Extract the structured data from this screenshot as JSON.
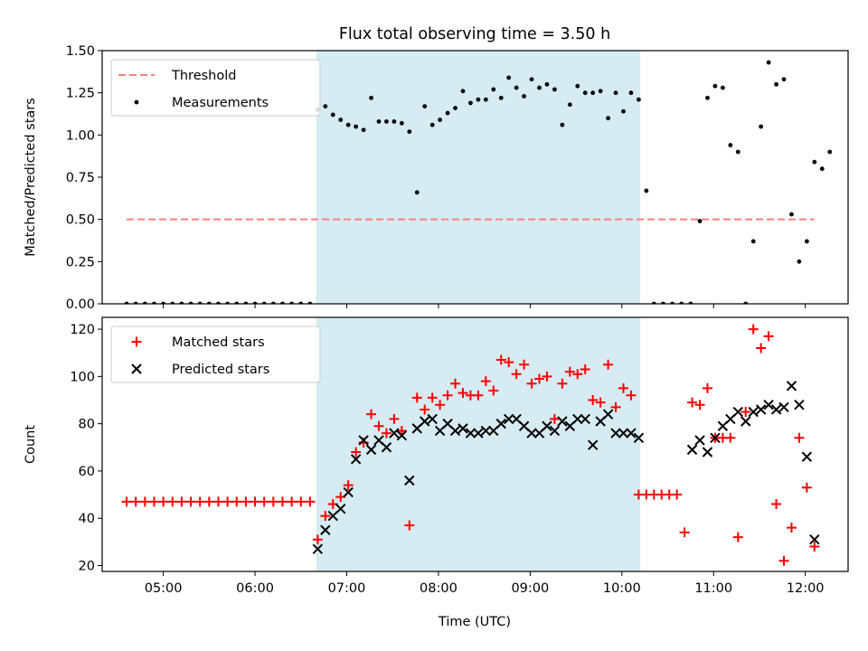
{
  "title": "Flux total observing time = 3.50 h",
  "xlabel": "Time (UTC)",
  "x_tick_labels": [
    "05:00",
    "06:00",
    "07:00",
    "08:00",
    "09:00",
    "10:00",
    "11:00",
    "12:00"
  ],
  "colors": {
    "threshold": "#ff7f7f",
    "measurement": "#000000",
    "matched": "#ff0000",
    "predicted": "#000000",
    "highlight": "#add8e6"
  },
  "chart_data": [
    {
      "type": "scatter",
      "ylabel": "Matched/Predicted stars",
      "xlim": [
        "04:20",
        "12:28"
      ],
      "ylim": [
        0,
        1.5
      ],
      "y_ticks": [
        "0.00",
        "0.25",
        "0.50",
        "0.75",
        "1.00",
        "1.25",
        "1.50"
      ],
      "highlight_span": [
        "06:40",
        "10:12"
      ],
      "grid": false,
      "legend_position": "top-left",
      "series": [
        {
          "name": "Threshold",
          "style": "dashed-line",
          "points": [
            [
              "04:36",
              0.5
            ],
            [
              "12:06",
              0.5
            ]
          ]
        },
        {
          "name": "Measurements",
          "style": "dot",
          "points": [
            [
              "04:36",
              0.0
            ],
            [
              "04:42",
              0.0
            ],
            [
              "04:48",
              0.0
            ],
            [
              "04:54",
              0.0
            ],
            [
              "05:00",
              0.0
            ],
            [
              "05:06",
              0.0
            ],
            [
              "05:12",
              0.0
            ],
            [
              "05:18",
              0.0
            ],
            [
              "05:24",
              0.0
            ],
            [
              "05:30",
              0.0
            ],
            [
              "05:36",
              0.0
            ],
            [
              "05:42",
              0.0
            ],
            [
              "05:48",
              0.0
            ],
            [
              "05:54",
              0.0
            ],
            [
              "06:00",
              0.0
            ],
            [
              "06:06",
              0.0
            ],
            [
              "06:12",
              0.0
            ],
            [
              "06:18",
              0.0
            ],
            [
              "06:24",
              0.0
            ],
            [
              "06:30",
              0.0
            ],
            [
              "06:36",
              0.0
            ],
            [
              "06:41",
              1.15
            ],
            [
              "06:46",
              1.17
            ],
            [
              "06:51",
              1.12
            ],
            [
              "06:56",
              1.09
            ],
            [
              "07:01",
              1.06
            ],
            [
              "07:06",
              1.05
            ],
            [
              "07:11",
              1.03
            ],
            [
              "07:16",
              1.22
            ],
            [
              "07:21",
              1.08
            ],
            [
              "07:26",
              1.08
            ],
            [
              "07:31",
              1.08
            ],
            [
              "07:36",
              1.07
            ],
            [
              "07:41",
              1.02
            ],
            [
              "07:46",
              0.66
            ],
            [
              "07:51",
              1.17
            ],
            [
              "07:56",
              1.06
            ],
            [
              "08:01",
              1.09
            ],
            [
              "08:06",
              1.13
            ],
            [
              "08:11",
              1.16
            ],
            [
              "08:16",
              1.26
            ],
            [
              "08:21",
              1.19
            ],
            [
              "08:26",
              1.21
            ],
            [
              "08:31",
              1.21
            ],
            [
              "08:36",
              1.27
            ],
            [
              "08:41",
              1.22
            ],
            [
              "08:46",
              1.34
            ],
            [
              "08:51",
              1.28
            ],
            [
              "08:56",
              1.23
            ],
            [
              "09:01",
              1.33
            ],
            [
              "09:06",
              1.28
            ],
            [
              "09:11",
              1.3
            ],
            [
              "09:16",
              1.27
            ],
            [
              "09:21",
              1.06
            ],
            [
              "09:26",
              1.18
            ],
            [
              "09:31",
              1.29
            ],
            [
              "09:36",
              1.25
            ],
            [
              "09:41",
              1.25
            ],
            [
              "09:46",
              1.26
            ],
            [
              "09:51",
              1.1
            ],
            [
              "09:56",
              1.25
            ],
            [
              "10:01",
              1.14
            ],
            [
              "10:06",
              1.25
            ],
            [
              "10:11",
              1.21
            ],
            [
              "10:16",
              0.67
            ],
            [
              "10:21",
              0.0
            ],
            [
              "10:27",
              0.0
            ],
            [
              "10:33",
              0.0
            ],
            [
              "10:39",
              0.0
            ],
            [
              "10:45",
              0.0
            ],
            [
              "10:51",
              0.49
            ],
            [
              "10:56",
              1.22
            ],
            [
              "11:01",
              1.29
            ],
            [
              "11:06",
              1.28
            ],
            [
              "11:11",
              0.94
            ],
            [
              "11:16",
              0.9
            ],
            [
              "11:21",
              0.0
            ],
            [
              "11:26",
              0.37
            ],
            [
              "11:31",
              1.05
            ],
            [
              "11:36",
              1.43
            ],
            [
              "11:41",
              1.3
            ],
            [
              "11:46",
              1.33
            ],
            [
              "11:51",
              0.53
            ],
            [
              "11:56",
              0.25
            ],
            [
              "12:01",
              0.37
            ],
            [
              "12:06",
              0.84
            ],
            [
              "12:11",
              0.8
            ],
            [
              "12:16",
              0.9
            ]
          ]
        }
      ]
    },
    {
      "type": "scatter",
      "ylabel": "Count",
      "xlim": [
        "04:20",
        "12:28"
      ],
      "ylim": [
        17.5,
        125
      ],
      "y_ticks": [
        "20",
        "40",
        "60",
        "80",
        "100",
        "120"
      ],
      "highlight_span": [
        "06:40",
        "10:12"
      ],
      "grid": false,
      "legend_position": "top-left",
      "series": [
        {
          "name": "Matched stars",
          "style": "plus",
          "points": [
            [
              "04:36",
              47
            ],
            [
              "04:42",
              47
            ],
            [
              "04:48",
              47
            ],
            [
              "04:54",
              47
            ],
            [
              "05:00",
              47
            ],
            [
              "05:06",
              47
            ],
            [
              "05:12",
              47
            ],
            [
              "05:18",
              47
            ],
            [
              "05:24",
              47
            ],
            [
              "05:30",
              47
            ],
            [
              "05:36",
              47
            ],
            [
              "05:42",
              47
            ],
            [
              "05:48",
              47
            ],
            [
              "05:54",
              47
            ],
            [
              "06:00",
              47
            ],
            [
              "06:06",
              47
            ],
            [
              "06:12",
              47
            ],
            [
              "06:18",
              47
            ],
            [
              "06:24",
              47
            ],
            [
              "06:30",
              47
            ],
            [
              "06:36",
              47
            ],
            [
              "06:41",
              31
            ],
            [
              "06:46",
              41
            ],
            [
              "06:51",
              46
            ],
            [
              "06:56",
              49
            ],
            [
              "07:01",
              54
            ],
            [
              "07:06",
              68
            ],
            [
              "07:11",
              72
            ],
            [
              "07:16",
              84
            ],
            [
              "07:21",
              79
            ],
            [
              "07:26",
              76
            ],
            [
              "07:31",
              82
            ],
            [
              "07:36",
              77
            ],
            [
              "07:41",
              37
            ],
            [
              "07:46",
              91
            ],
            [
              "07:51",
              86
            ],
            [
              "07:56",
              91
            ],
            [
              "08:01",
              88
            ],
            [
              "08:06",
              92
            ],
            [
              "08:11",
              97
            ],
            [
              "08:16",
              93
            ],
            [
              "08:21",
              92
            ],
            [
              "08:26",
              92
            ],
            [
              "08:31",
              98
            ],
            [
              "08:36",
              94
            ],
            [
              "08:41",
              107
            ],
            [
              "08:46",
              106
            ],
            [
              "08:51",
              101
            ],
            [
              "08:56",
              105
            ],
            [
              "09:01",
              97
            ],
            [
              "09:06",
              99
            ],
            [
              "09:11",
              100
            ],
            [
              "09:16",
              82
            ],
            [
              "09:21",
              97
            ],
            [
              "09:26",
              102
            ],
            [
              "09:31",
              101
            ],
            [
              "09:36",
              103
            ],
            [
              "09:41",
              90
            ],
            [
              "09:46",
              89
            ],
            [
              "09:51",
              105
            ],
            [
              "09:56",
              87
            ],
            [
              "10:01",
              95
            ],
            [
              "10:06",
              92
            ],
            [
              "10:11",
              50
            ],
            [
              "10:16",
              50
            ],
            [
              "10:21",
              50
            ],
            [
              "10:26",
              50
            ],
            [
              "10:31",
              50
            ],
            [
              "10:36",
              50
            ],
            [
              "10:41",
              34
            ],
            [
              "10:46",
              89
            ],
            [
              "10:51",
              88
            ],
            [
              "10:56",
              95
            ],
            [
              "11:01",
              74
            ],
            [
              "11:06",
              74
            ],
            [
              "11:11",
              74
            ],
            [
              "11:16",
              32
            ],
            [
              "11:21",
              85
            ],
            [
              "11:26",
              120
            ],
            [
              "11:31",
              112
            ],
            [
              "11:36",
              117
            ],
            [
              "11:41",
              46
            ],
            [
              "11:46",
              22
            ],
            [
              "11:51",
              36
            ],
            [
              "11:56",
              74
            ],
            [
              "12:01",
              53
            ],
            [
              "12:06",
              28
            ]
          ]
        },
        {
          "name": "Predicted stars",
          "style": "cross",
          "points": [
            [
              "06:41",
              27
            ],
            [
              "06:46",
              35
            ],
            [
              "06:51",
              41
            ],
            [
              "06:56",
              44
            ],
            [
              "07:01",
              51
            ],
            [
              "07:06",
              65
            ],
            [
              "07:11",
              73
            ],
            [
              "07:16",
              69
            ],
            [
              "07:21",
              73
            ],
            [
              "07:26",
              70
            ],
            [
              "07:31",
              76
            ],
            [
              "07:36",
              75
            ],
            [
              "07:41",
              56
            ],
            [
              "07:46",
              78
            ],
            [
              "07:51",
              81
            ],
            [
              "07:56",
              82
            ],
            [
              "08:01",
              77
            ],
            [
              "08:06",
              80
            ],
            [
              "08:11",
              77
            ],
            [
              "08:16",
              78
            ],
            [
              "08:21",
              76
            ],
            [
              "08:26",
              76
            ],
            [
              "08:31",
              77
            ],
            [
              "08:36",
              77
            ],
            [
              "08:41",
              80
            ],
            [
              "08:46",
              82
            ],
            [
              "08:51",
              82
            ],
            [
              "08:56",
              79
            ],
            [
              "09:01",
              76
            ],
            [
              "09:06",
              76
            ],
            [
              "09:11",
              79
            ],
            [
              "09:16",
              77
            ],
            [
              "09:21",
              81
            ],
            [
              "09:26",
              79
            ],
            [
              "09:31",
              82
            ],
            [
              "09:36",
              82
            ],
            [
              "09:41",
              71
            ],
            [
              "09:46",
              81
            ],
            [
              "09:51",
              84
            ],
            [
              "09:56",
              76
            ],
            [
              "10:01",
              76
            ],
            [
              "10:06",
              76
            ],
            [
              "10:11",
              74
            ],
            [
              "10:46",
              69
            ],
            [
              "10:51",
              73
            ],
            [
              "10:56",
              68
            ],
            [
              "11:01",
              74
            ],
            [
              "11:06",
              79
            ],
            [
              "11:11",
              82
            ],
            [
              "11:16",
              85
            ],
            [
              "11:21",
              81
            ],
            [
              "11:26",
              85
            ],
            [
              "11:31",
              86
            ],
            [
              "11:36",
              88
            ],
            [
              "11:41",
              86
            ],
            [
              "11:46",
              87
            ],
            [
              "11:51",
              96
            ],
            [
              "11:56",
              88
            ],
            [
              "12:01",
              66
            ],
            [
              "12:06",
              31
            ]
          ]
        }
      ]
    }
  ]
}
